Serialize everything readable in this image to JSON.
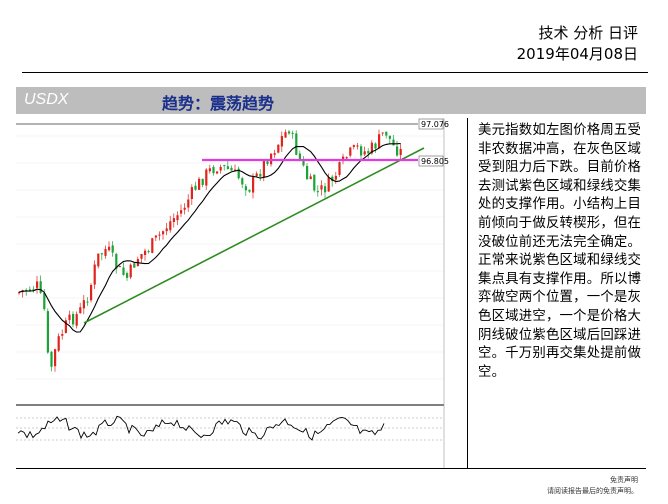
{
  "header": {
    "title": "技术 分析 日评",
    "date": "2019年04月08日"
  },
  "bar": {
    "instrument": "USDX",
    "trend_label": "趋势：震荡趋势"
  },
  "chart": {
    "price_labels": [
      "97.076",
      "96.805"
    ],
    "colors": {
      "up": "#e0231b",
      "down": "#1aa336",
      "ma": "#000000",
      "support": "#2e8b20",
      "zone": "#e23ce0",
      "resistance": "#9a9a9a"
    }
  },
  "analysis": {
    "text": "美元指数如左图价格周五受非农数据冲高，在灰色区域受到阻力后下跌。目前价格去测试紫色区域和绿线交集处的支撑作用。小结构上目前倾向于做反转楔形，但在没破位前还无法完全确定。正常来说紫色区域和绿线交集点具有支撑作用。所以博弈做空两个位置，一个是灰色区域进空，一个是价格大阴线破位紫色区域后回踩进空。千万别再交集处提前做空。"
  },
  "disclaimer": {
    "line1": "免责声明",
    "line2": "请阅读报告最后的免责声明。"
  }
}
